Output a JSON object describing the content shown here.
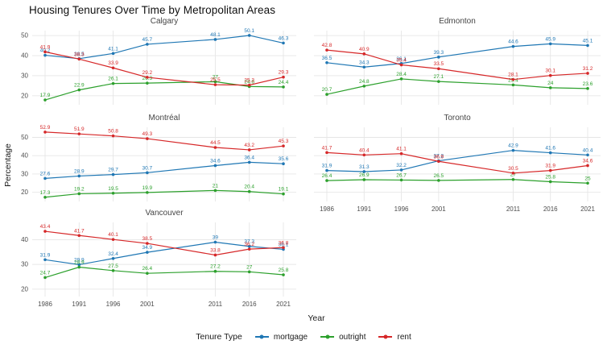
{
  "title": "Housing Tenures Over Time by Metropolitan Areas",
  "axes": {
    "x_label": "Year",
    "y_label": "Percentage",
    "x_ticks": [
      1986,
      1991,
      1996,
      2001,
      2011,
      2016,
      2021
    ]
  },
  "legend": {
    "title": "Tenure Type",
    "entries": [
      {
        "label": "mortgage",
        "color": "#1f77b4"
      },
      {
        "label": "outright",
        "color": "#2ca02c"
      },
      {
        "label": "rent",
        "color": "#d62728"
      }
    ]
  },
  "chart_data": {
    "type": "line",
    "x": [
      1986,
      1991,
      1996,
      2001,
      2011,
      2016,
      2021
    ],
    "grid": true,
    "legend_position": "bottom",
    "row_scales": [
      {
        "ylim": [
          15.5,
          52.5
        ],
        "yticks": [
          20,
          30,
          40,
          50
        ]
      },
      {
        "ylim": [
          15,
          55.5
        ],
        "yticks": [
          20,
          30,
          40,
          50
        ]
      },
      {
        "ylim": [
          17,
          47
        ],
        "yticks": [
          20,
          30,
          40
        ]
      }
    ],
    "facets": [
      {
        "name": "Calgary",
        "row": 0,
        "col": 0,
        "y_axis": true,
        "x_axis": false,
        "series": [
          {
            "name": "mortgage",
            "values": [
              40.2,
              38.5,
              41.1,
              45.7,
              48.1,
              50.1,
              46.3
            ]
          },
          {
            "name": "outright",
            "values": [
              17.9,
              22.9,
              26.1,
              26.3,
              27,
              24.6,
              24.4
            ]
          },
          {
            "name": "rent",
            "values": [
              41.9,
              38.3,
              33.9,
              29.2,
              25.5,
              25.3,
              29.3
            ]
          }
        ]
      },
      {
        "name": "Edmonton",
        "row": 0,
        "col": 1,
        "y_axis": false,
        "x_axis": false,
        "series": [
          {
            "name": "mortgage",
            "values": [
              36.5,
              34.3,
              36.1,
              39.3,
              44.6,
              45.9,
              45.1
            ]
          },
          {
            "name": "outright",
            "values": [
              20.7,
              24.8,
              28.4,
              27.1,
              25.4,
              24,
              23.6
            ]
          },
          {
            "name": "rent",
            "values": [
              42.8,
              40.9,
              35.4,
              33.5,
              28.1,
              30.1,
              31.2
            ]
          }
        ]
      },
      {
        "name": "Montréal",
        "row": 1,
        "col": 0,
        "y_axis": true,
        "x_axis": false,
        "series": [
          {
            "name": "mortgage",
            "values": [
              27.6,
              28.9,
              29.7,
              30.7,
              34.6,
              36.4,
              35.6
            ]
          },
          {
            "name": "outright",
            "values": [
              17.3,
              19.2,
              19.5,
              19.9,
              21,
              20.4,
              19.1
            ]
          },
          {
            "name": "rent",
            "values": [
              52.9,
              51.9,
              50.8,
              49.3,
              44.5,
              43.2,
              45.3
            ]
          }
        ]
      },
      {
        "name": "Toronto",
        "row": 1,
        "col": 1,
        "y_axis": false,
        "x_axis": true,
        "series": [
          {
            "name": "mortgage",
            "values": [
              31.9,
              31.3,
              32.2,
              37.2,
              42.9,
              41.6,
              40.4
            ]
          },
          {
            "name": "outright",
            "values": [
              26.4,
              26.9,
              26.7,
              26.5,
              27,
              25.8,
              25
            ]
          },
          {
            "name": "rent",
            "values": [
              41.7,
              40.4,
              41.1,
              36.9,
              30.5,
              31.9,
              34.6
            ]
          }
        ]
      },
      {
        "name": "Vancouver",
        "row": 2,
        "col": 0,
        "y_axis": true,
        "x_axis": true,
        "series": [
          {
            "name": "mortgage",
            "values": [
              31.9,
              29.9,
              32.4,
              34.9,
              39,
              37.3,
              36.1
            ]
          },
          {
            "name": "outright",
            "values": [
              24.7,
              28.9,
              27.5,
              26.4,
              27.2,
              27,
              25.8
            ]
          },
          {
            "name": "rent",
            "values": [
              43.4,
              41.7,
              40.1,
              38.5,
              33.8,
              36.2,
              36.8
            ]
          }
        ]
      }
    ]
  }
}
